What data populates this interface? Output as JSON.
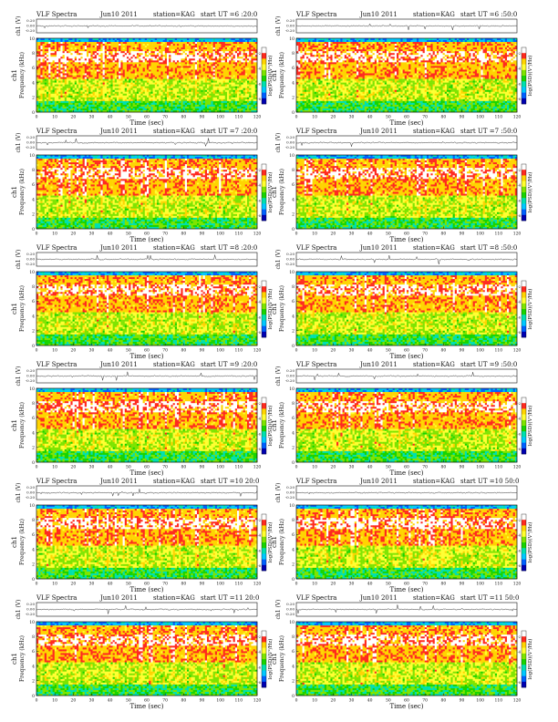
{
  "page": {
    "station_label": "station=KAG",
    "date_label": "Jun10 2011"
  },
  "colors": {
    "background": "#ffffff",
    "axis": "#111111",
    "trace": "#222222",
    "colormap": [
      "#ffffff",
      "#ff2a1f",
      "#ffd400",
      "#ffff30",
      "#7fe400",
      "#19d400",
      "#00e0b0",
      "#00c8ff",
      "#0060ff",
      "#0000b0"
    ]
  },
  "panels": [
    {
      "title": "VLF Spectra",
      "date": "Jun10 2011",
      "station": "station=KAG",
      "start": "start  UT =6 :20:0",
      "seed": 11
    },
    {
      "title": "VLF Spectra",
      "date": "Jun10 2011",
      "station": "station=KAG",
      "start": "start  UT =6 :50:0",
      "seed": 23
    },
    {
      "title": "VLF Spectra",
      "date": "Jun10 2011",
      "station": "station=KAG",
      "start": "start  UT =7 :20:0",
      "seed": 37
    },
    {
      "title": "VLF Spectra",
      "date": "Jun10 2011",
      "station": "station=KAG",
      "start": "start  UT =7 :50:0",
      "seed": 41
    },
    {
      "title": "VLF Spectra",
      "date": "Jun10 2011",
      "station": "station=KAG",
      "start": "start  UT =8 :20:0",
      "seed": 53
    },
    {
      "title": "VLF Spectra",
      "date": "Jun10 2011",
      "station": "station=KAG",
      "start": "start  UT =8 :50:0",
      "seed": 67
    },
    {
      "title": "VLF Spectra",
      "date": "Jun10 2011",
      "station": "station=KAG",
      "start": "start  UT =9 :20:0",
      "seed": 71
    },
    {
      "title": "VLF Spectra",
      "date": "Jun10 2011",
      "station": "station=KAG",
      "start": "start  UT =9 :50:0",
      "seed": 83
    },
    {
      "title": "VLF Spectra",
      "date": "Jun10 2011",
      "station": "station=KAG",
      "start": "start  UT =10 20:0",
      "seed": 97
    },
    {
      "title": "VLF Spectra",
      "date": "Jun10 2011",
      "station": "station=KAG",
      "start": "start  UT =10 50:0",
      "seed": 101
    },
    {
      "title": "VLF Spectra",
      "date": "Jun10 2011",
      "station": "station=KAG",
      "start": "start  UT =11 20:0",
      "seed": 113
    },
    {
      "title": "VLF Spectra",
      "date": "Jun10 2011",
      "station": "station=KAG",
      "start": "start  UT =11 50:0",
      "seed": 127
    }
  ],
  "chart_data": {
    "type": "heatmap",
    "xlabel": "Time  (sec)",
    "ylabel": "Frequency  (kHz)",
    "channel_label": "ch1",
    "trace_ylabel": "ch1 (V)",
    "colorbar_label": "log(PSD)(V²/Hz)",
    "xlim": [
      0,
      120
    ],
    "ylim": [
      0,
      10
    ],
    "trace_ylim": [
      -0.2,
      0.2
    ],
    "x_ticks": [
      0,
      10,
      20,
      30,
      40,
      50,
      60,
      70,
      80,
      90,
      100,
      110,
      120
    ],
    "y_ticks": [
      0,
      2,
      4,
      6,
      8,
      10
    ],
    "trace_ticks": [
      "0.20",
      "0.00",
      "-0.20"
    ],
    "colorbar_ticks": [
      "-2",
      "-4",
      "-6",
      "-8"
    ],
    "bands": [
      {
        "from_khz": 0,
        "to_khz": 1.5,
        "level": "low"
      },
      {
        "from_khz": 1.5,
        "to_khz": 4.5,
        "level": "medium"
      },
      {
        "from_khz": 4.5,
        "to_khz": 9.5,
        "level": "high"
      },
      {
        "from_khz": 9.5,
        "to_khz": 10,
        "level": "low"
      }
    ]
  }
}
